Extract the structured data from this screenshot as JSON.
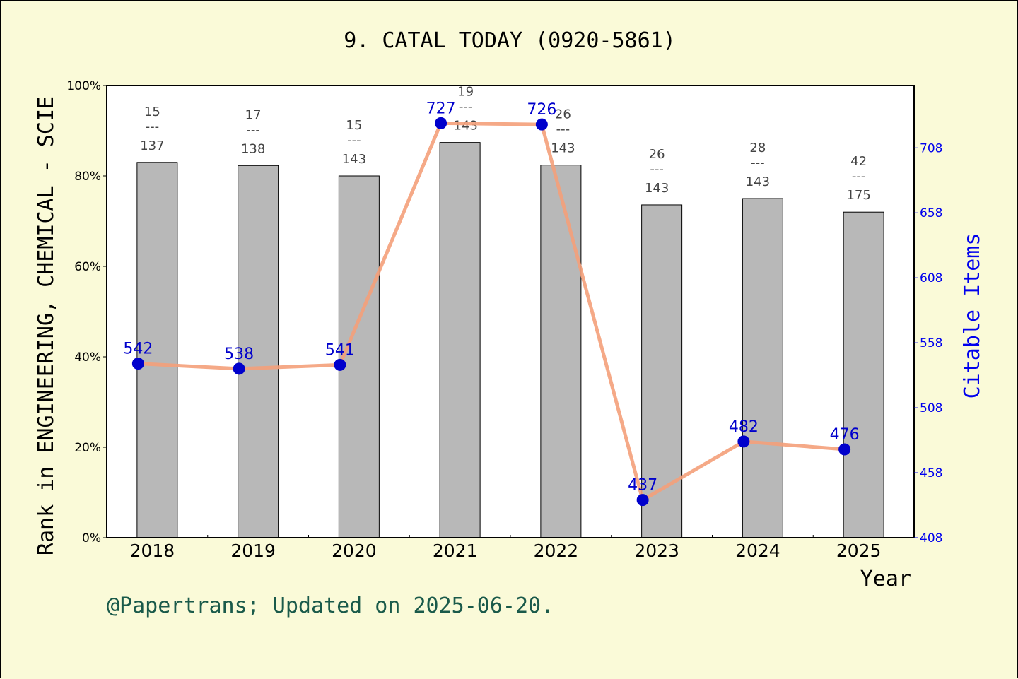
{
  "chart_data": {
    "type": "bar",
    "title": "9. CATAL TODAY (0920-5861)",
    "xlabel": "Year",
    "ylabel": "Rank in ENGINEERING, CHEMICAL - SCIE",
    "y2label": "Citable Items",
    "categories": [
      "2018",
      "2019",
      "2020",
      "2021",
      "2022",
      "2023",
      "2024",
      "2025"
    ],
    "ylim": [
      0,
      100
    ],
    "y_ticks": [
      "0%",
      "20%",
      "40%",
      "60%",
      "80%",
      "100%"
    ],
    "y2lim": [
      408,
      756
    ],
    "y2_ticks": [
      "408",
      "458",
      "508",
      "558",
      "608",
      "658",
      "708"
    ],
    "grid": false,
    "series": [
      {
        "kind": "bar",
        "values": [
          83.0,
          82.3,
          80.0,
          87.4,
          82.4,
          73.6,
          75.0,
          72.0
        ],
        "rank": [
          "15",
          "17",
          "15",
          "19",
          "26",
          "26",
          "28",
          "42"
        ],
        "total": [
          "137",
          "138",
          "143",
          "143",
          "143",
          "143",
          "143",
          "175"
        ],
        "color": "#b8b8b8"
      },
      {
        "kind": "line",
        "axis": "right",
        "values": [
          542,
          538,
          541,
          727,
          726,
          437,
          482,
          476
        ],
        "color": "#f4a07a",
        "marker_color": "#0000cc"
      }
    ]
  },
  "footer": "@Papertrans; Updated on 2025-06-20."
}
